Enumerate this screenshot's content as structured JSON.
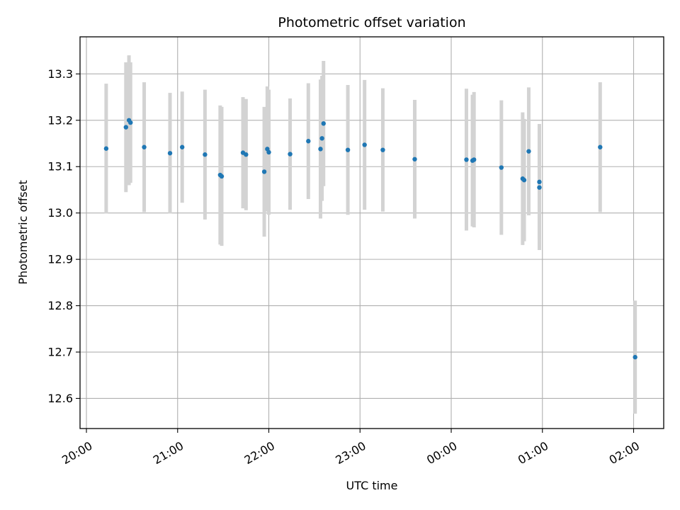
{
  "chart_data": {
    "type": "scatter",
    "title": "Photometric offset variation",
    "xlabel": "UTC time",
    "ylabel": "Photometric offset",
    "x_ticks": [
      "20:00",
      "21:00",
      "22:00",
      "23:00",
      "00:00",
      "01:00",
      "02:00"
    ],
    "x_tick_hours": [
      20,
      21,
      22,
      23,
      24,
      25,
      26
    ],
    "xlim_hours": [
      19.93,
      26.33
    ],
    "y_ticks": [
      "12.6",
      "12.7",
      "12.8",
      "12.9",
      "13.0",
      "13.1",
      "13.2",
      "13.3"
    ],
    "y_tick_values": [
      12.6,
      12.7,
      12.8,
      12.9,
      13.0,
      13.1,
      13.2,
      13.3
    ],
    "ylim": [
      12.535,
      13.38
    ],
    "grid": true,
    "marker_color": "#1f77b4",
    "errorbar_color": "#d3d3d3",
    "points": [
      {
        "t": "20:13",
        "y": 13.139,
        "err": 0.14
      },
      {
        "t": "20:26",
        "y": 13.185,
        "err": 0.14
      },
      {
        "t": "20:28",
        "y": 13.2,
        "err": 0.14
      },
      {
        "t": "20:29",
        "y": 13.195,
        "err": 0.13
      },
      {
        "t": "20:38",
        "y": 13.142,
        "err": 0.14
      },
      {
        "t": "20:55",
        "y": 13.129,
        "err": 0.13
      },
      {
        "t": "21:03",
        "y": 13.142,
        "err": 0.12
      },
      {
        "t": "21:18",
        "y": 13.126,
        "err": 0.14
      },
      {
        "t": "21:28",
        "y": 13.082,
        "err": 0.15
      },
      {
        "t": "21:29",
        "y": 13.079,
        "err": 0.15
      },
      {
        "t": "21:43",
        "y": 13.13,
        "err": 0.12
      },
      {
        "t": "21:45",
        "y": 13.126,
        "err": 0.12
      },
      {
        "t": "21:57",
        "y": 13.089,
        "err": 0.14
      },
      {
        "t": "21:59",
        "y": 13.138,
        "err": 0.135
      },
      {
        "t": "22:00",
        "y": 13.131,
        "err": 0.135
      },
      {
        "t": "22:14",
        "y": 13.127,
        "err": 0.12
      },
      {
        "t": "22:26",
        "y": 13.155,
        "err": 0.125
      },
      {
        "t": "22:34",
        "y": 13.138,
        "err": 0.15
      },
      {
        "t": "22:35",
        "y": 13.161,
        "err": 0.135
      },
      {
        "t": "22:36",
        "y": 13.193,
        "err": 0.135
      },
      {
        "t": "22:52",
        "y": 13.136,
        "err": 0.14
      },
      {
        "t": "23:03",
        "y": 13.147,
        "err": 0.14
      },
      {
        "t": "23:15",
        "y": 13.136,
        "err": 0.133
      },
      {
        "t": "23:36",
        "y": 13.116,
        "err": 0.128
      },
      {
        "t": "00:10",
        "y": 13.115,
        "err": 0.153
      },
      {
        "t": "00:14",
        "y": 13.113,
        "err": 0.142
      },
      {
        "t": "00:15",
        "y": 13.115,
        "err": 0.146
      },
      {
        "t": "00:33",
        "y": 13.098,
        "err": 0.145
      },
      {
        "t": "00:47",
        "y": 13.074,
        "err": 0.143
      },
      {
        "t": "00:48",
        "y": 13.071,
        "err": 0.132
      },
      {
        "t": "00:51",
        "y": 13.133,
        "err": 0.138
      },
      {
        "t": "00:58",
        "y": 13.067,
        "err": 0.125
      },
      {
        "t": "00:58",
        "y": 13.055,
        "err": 0.135
      },
      {
        "t": "01:38",
        "y": 13.142,
        "err": 0.14
      },
      {
        "t": "02:01",
        "y": 12.689,
        "err": 0.122
      }
    ]
  }
}
